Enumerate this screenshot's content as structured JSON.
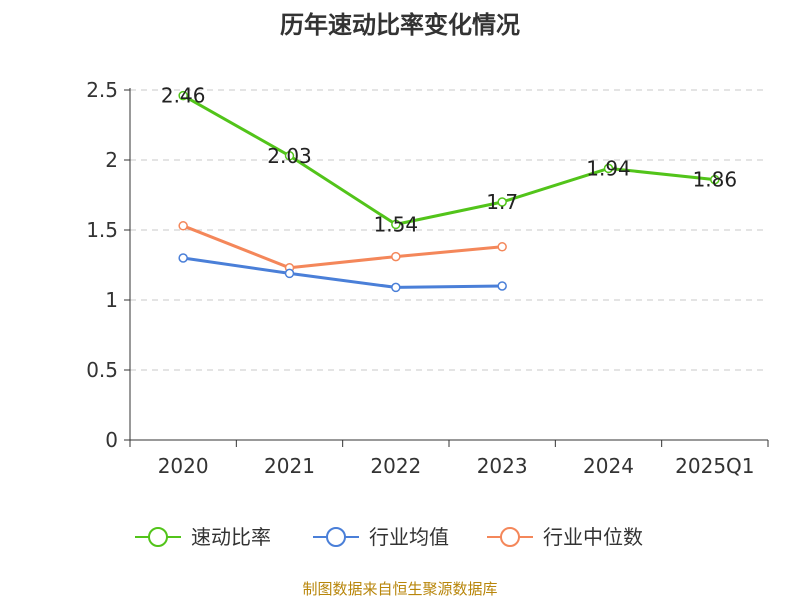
{
  "chart_data": {
    "type": "line",
    "title": "历年速动比率变化情况",
    "categories": [
      "2020",
      "2021",
      "2022",
      "2023",
      "2024",
      "2025Q1"
    ],
    "y_ticks": [
      "0",
      "0.5",
      "1",
      "1.5",
      "2",
      "2.5"
    ],
    "ylim": [
      0,
      2.5
    ],
    "grid": true,
    "series": [
      {
        "name": "速动比率",
        "color": "#52c41a",
        "values": [
          2.46,
          2.03,
          1.54,
          1.7,
          1.94,
          1.86
        ],
        "labels": [
          "2.46",
          "2.03",
          "1.54",
          "1.7",
          "1.94",
          "1.86"
        ],
        "show_labels": true
      },
      {
        "name": "行业均值",
        "color": "#4a7fd8",
        "values": [
          1.3,
          1.19,
          1.09,
          1.1,
          null,
          null
        ],
        "show_labels": false
      },
      {
        "name": "行业中位数",
        "color": "#f4875a",
        "values": [
          1.53,
          1.23,
          1.31,
          1.38,
          null,
          null
        ],
        "show_labels": false
      }
    ],
    "legend_position": "bottom",
    "source": "制图数据来自恒生聚源数据库"
  }
}
